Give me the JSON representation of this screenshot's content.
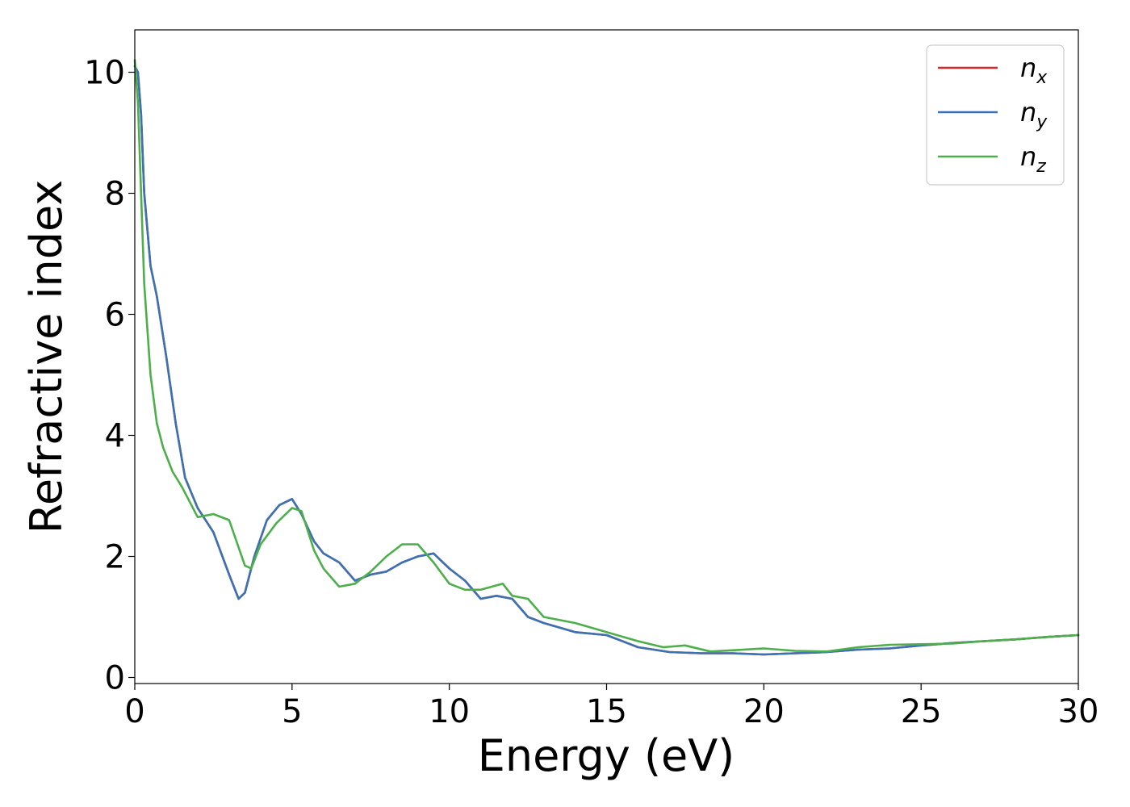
{
  "chart_data": {
    "type": "line",
    "xlabel": "Energy (eV)",
    "ylabel": "Refractive index",
    "xlim": [
      0,
      30
    ],
    "ylim": [
      -0.1,
      10.7
    ],
    "xticks": [
      0,
      5,
      10,
      15,
      20,
      25,
      30
    ],
    "yticks": [
      0,
      2,
      4,
      6,
      8,
      10
    ],
    "grid": false,
    "legend_position": "top-right",
    "series": [
      {
        "name": "n_x",
        "label_base": "n",
        "label_sub": "x",
        "color": "#d62728",
        "x": [
          0,
          0.1,
          0.2,
          0.3,
          0.5,
          0.7,
          1.0,
          1.3,
          1.6,
          2.0,
          2.5,
          3.0,
          3.3,
          3.5,
          3.8,
          4.2,
          4.6,
          5.0,
          5.3,
          5.7,
          6.0,
          6.5,
          7.0,
          7.5,
          8.0,
          8.5,
          9.0,
          9.5,
          10.0,
          10.5,
          11.0,
          11.5,
          12.0,
          12.5,
          13.0,
          14.0,
          15.0,
          16.0,
          17.0,
          18.0,
          19.0,
          20.0,
          21.0,
          22.0,
          23.0,
          24.0,
          25.0,
          26.0,
          27.0,
          28.0,
          29.0,
          30.0
        ],
        "y": [
          10.1,
          10.0,
          9.3,
          8.0,
          6.8,
          6.3,
          5.3,
          4.2,
          3.3,
          2.8,
          2.4,
          1.7,
          1.3,
          1.4,
          2.0,
          2.6,
          2.85,
          2.95,
          2.7,
          2.25,
          2.05,
          1.9,
          1.6,
          1.7,
          1.75,
          1.9,
          2.0,
          2.05,
          1.8,
          1.6,
          1.3,
          1.35,
          1.3,
          1.0,
          0.9,
          0.75,
          0.7,
          0.5,
          0.42,
          0.4,
          0.4,
          0.38,
          0.4,
          0.42,
          0.46,
          0.48,
          0.53,
          0.57,
          0.6,
          0.63,
          0.67,
          0.7
        ]
      },
      {
        "name": "n_y",
        "label_base": "n",
        "label_sub": "y",
        "color": "#3a73b5",
        "x": [
          0,
          0.1,
          0.2,
          0.3,
          0.5,
          0.7,
          1.0,
          1.3,
          1.6,
          2.0,
          2.5,
          3.0,
          3.3,
          3.5,
          3.8,
          4.2,
          4.6,
          5.0,
          5.3,
          5.7,
          6.0,
          6.5,
          7.0,
          7.5,
          8.0,
          8.5,
          9.0,
          9.5,
          10.0,
          10.5,
          11.0,
          11.5,
          12.0,
          12.5,
          13.0,
          14.0,
          15.0,
          16.0,
          17.0,
          18.0,
          19.0,
          20.0,
          21.0,
          22.0,
          23.0,
          24.0,
          25.0,
          26.0,
          27.0,
          28.0,
          29.0,
          30.0
        ],
        "y": [
          10.1,
          10.0,
          9.3,
          8.0,
          6.8,
          6.3,
          5.3,
          4.2,
          3.3,
          2.8,
          2.4,
          1.7,
          1.3,
          1.4,
          2.0,
          2.6,
          2.85,
          2.95,
          2.7,
          2.25,
          2.05,
          1.9,
          1.6,
          1.7,
          1.75,
          1.9,
          2.0,
          2.05,
          1.8,
          1.6,
          1.3,
          1.35,
          1.3,
          1.0,
          0.9,
          0.75,
          0.7,
          0.5,
          0.42,
          0.4,
          0.4,
          0.38,
          0.4,
          0.42,
          0.46,
          0.48,
          0.53,
          0.57,
          0.6,
          0.63,
          0.67,
          0.7
        ]
      },
      {
        "name": "n_z",
        "label_base": "n",
        "label_sub": "z",
        "color": "#4daf4a",
        "x": [
          0,
          0.1,
          0.2,
          0.3,
          0.5,
          0.7,
          0.9,
          1.2,
          1.5,
          2.0,
          2.5,
          3.0,
          3.5,
          3.7,
          4.0,
          4.5,
          5.0,
          5.3,
          5.7,
          6.0,
          6.5,
          7.0,
          7.5,
          8.0,
          8.5,
          9.0,
          9.5,
          10.0,
          10.5,
          11.0,
          11.7,
          12.0,
          12.5,
          13.0,
          14.0,
          15.0,
          16.0,
          16.8,
          17.5,
          18.3,
          19.0,
          20.0,
          21.0,
          22.0,
          23.0,
          24.0,
          25.0,
          26.0,
          27.0,
          28.0,
          29.0,
          30.0
        ],
        "y": [
          10.2,
          9.5,
          8.0,
          6.5,
          5.0,
          4.2,
          3.8,
          3.4,
          3.15,
          2.65,
          2.7,
          2.6,
          1.85,
          1.8,
          2.2,
          2.55,
          2.8,
          2.75,
          2.1,
          1.8,
          1.5,
          1.55,
          1.75,
          2.0,
          2.2,
          2.2,
          1.9,
          1.55,
          1.45,
          1.45,
          1.55,
          1.35,
          1.3,
          1.0,
          0.9,
          0.75,
          0.6,
          0.5,
          0.53,
          0.43,
          0.45,
          0.48,
          0.44,
          0.43,
          0.5,
          0.54,
          0.55,
          0.56,
          0.6,
          0.63,
          0.67,
          0.7
        ]
      }
    ]
  }
}
